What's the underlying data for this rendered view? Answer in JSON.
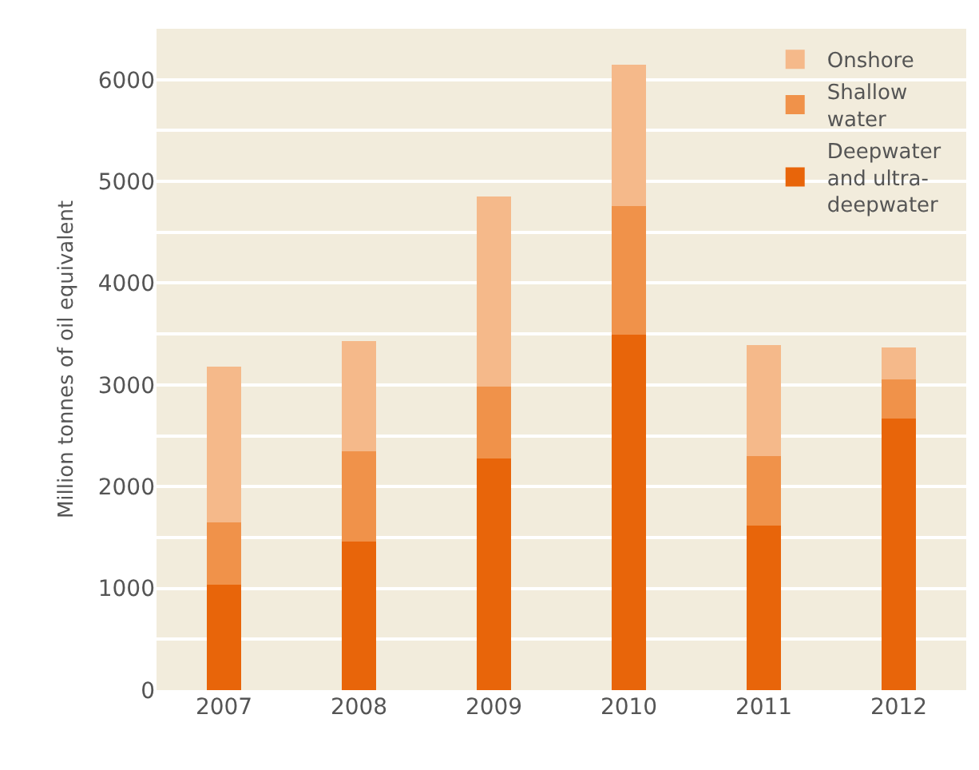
{
  "chart_data": {
    "type": "bar",
    "stacked": true,
    "ylabel": "Million tonnes of oil equivalent",
    "categories": [
      "2007",
      "2008",
      "2009",
      "2010",
      "2011",
      "2012"
    ],
    "series": [
      {
        "name": "Deepwater and ultra-deepwater",
        "color": "#e8650a",
        "values": [
          1040,
          1460,
          2280,
          3490,
          1620,
          2670
        ]
      },
      {
        "name": "Shallow water",
        "color": "#f0924a",
        "values": [
          610,
          890,
          700,
          1270,
          680,
          380
        ]
      },
      {
        "name": "Onshore",
        "color": "#f5b98a",
        "values": [
          1530,
          1080,
          1870,
          1390,
          1090,
          320
        ]
      }
    ],
    "ylim": [
      0,
      6500
    ],
    "yticks": [
      0,
      {
        "value": 500,
        "label": null
      },
      1000,
      {
        "value": 1500,
        "label": null
      },
      2000,
      {
        "value": 2500,
        "label": null
      },
      3000,
      {
        "value": 3500,
        "label": null
      },
      4000,
      {
        "value": 4500,
        "label": null
      },
      5000,
      {
        "value": 5500,
        "label": null
      },
      6000,
      {
        "value": 6500,
        "label": null
      }
    ],
    "grid": true,
    "legend": "top right"
  }
}
